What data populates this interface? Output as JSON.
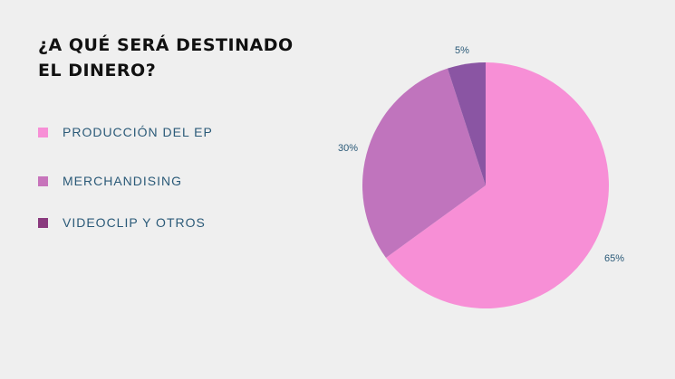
{
  "title": "¿A QUÉ SERÁ DESTINADO EL DINERO?",
  "chart_data": {
    "type": "pie",
    "title": "¿A QUÉ SERÁ DESTINADO EL DINERO?",
    "legend_position": "left",
    "legend": [
      {
        "label": "PRODUCCIÓN DEL EP",
        "color": "#f78fd6"
      },
      {
        "label": "MERCHANDISING",
        "color": "#c774bb"
      },
      {
        "label": "VIDEOCLIP Y OTROS",
        "color": "#8a3a7e"
      }
    ],
    "slices": [
      {
        "label": "PRODUCCIÓN DEL EP",
        "value": 65,
        "value_label": "65%",
        "color": "#f78fd6"
      },
      {
        "label": "MERCHANDISING",
        "value": 30,
        "value_label": "30%",
        "color": "#c074bd"
      },
      {
        "label": "VIDEOCLIP Y OTROS",
        "value": 5,
        "value_label": "5%",
        "color": "#8a55a3"
      }
    ]
  }
}
